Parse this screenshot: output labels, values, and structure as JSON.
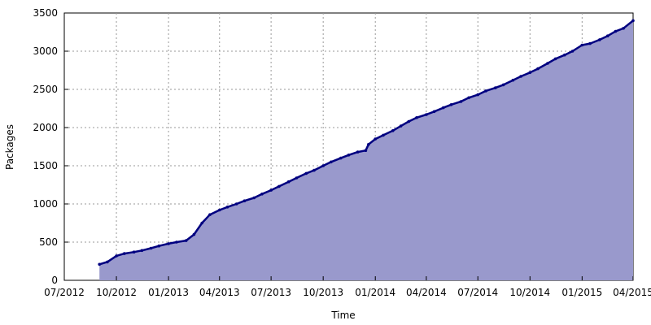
{
  "chart_data": {
    "type": "area",
    "title": "",
    "xlabel": "Time",
    "ylabel": "Packages",
    "x_ticks": [
      {
        "date": "2012-07-01",
        "label": "07/2012"
      },
      {
        "date": "2012-10-01",
        "label": "10/2012"
      },
      {
        "date": "2013-01-01",
        "label": "01/2013"
      },
      {
        "date": "2013-04-01",
        "label": "04/2013"
      },
      {
        "date": "2013-07-01",
        "label": "07/2013"
      },
      {
        "date": "2013-10-01",
        "label": "10/2013"
      },
      {
        "date": "2014-01-01",
        "label": "01/2014"
      },
      {
        "date": "2014-04-01",
        "label": "04/2014"
      },
      {
        "date": "2014-07-01",
        "label": "07/2014"
      },
      {
        "date": "2014-10-01",
        "label": "10/2014"
      },
      {
        "date": "2015-01-01",
        "label": "01/2015"
      },
      {
        "date": "2015-04-01",
        "label": "04/2015"
      }
    ],
    "xlim": [
      "2012-07-01",
      "2015-04-01"
    ],
    "y_ticks": [
      0,
      500,
      1000,
      1500,
      2000,
      2500,
      3000,
      3500
    ],
    "ylim": [
      0,
      3500
    ],
    "grid": true,
    "colors": {
      "fill": "#9999cc",
      "line": "#000080"
    },
    "series": [
      {
        "x": [
          "2012-09-01",
          "2012-09-15",
          "2012-10-01",
          "2012-10-15",
          "2012-11-01",
          "2012-11-15",
          "2012-12-01",
          "2012-12-15",
          "2013-01-01",
          "2013-01-15",
          "2013-02-01",
          "2013-02-15",
          "2013-03-01",
          "2013-03-15",
          "2013-04-01",
          "2013-04-15",
          "2013-05-01",
          "2013-05-15",
          "2013-06-01",
          "2013-06-15",
          "2013-07-01",
          "2013-07-15",
          "2013-08-01",
          "2013-08-15",
          "2013-09-01",
          "2013-09-15",
          "2013-10-01",
          "2013-10-15",
          "2013-11-01",
          "2013-11-15",
          "2013-12-01",
          "2013-12-15",
          "2013-12-20",
          "2014-01-01",
          "2014-01-15",
          "2014-02-01",
          "2014-02-15",
          "2014-03-01",
          "2014-03-15",
          "2014-04-01",
          "2014-04-15",
          "2014-05-01",
          "2014-05-15",
          "2014-06-01",
          "2014-06-15",
          "2014-07-01",
          "2014-07-15",
          "2014-08-01",
          "2014-08-15",
          "2014-09-01",
          "2014-09-15",
          "2014-10-01",
          "2014-10-15",
          "2014-11-01",
          "2014-11-15",
          "2014-12-01",
          "2014-12-15",
          "2015-01-01",
          "2015-01-15",
          "2015-02-01",
          "2015-02-15",
          "2015-03-01",
          "2015-03-15",
          "2015-04-01"
        ],
        "y": [
          210,
          240,
          320,
          350,
          370,
          390,
          420,
          450,
          480,
          500,
          520,
          600,
          750,
          860,
          920,
          960,
          1000,
          1040,
          1080,
          1130,
          1180,
          1230,
          1290,
          1340,
          1400,
          1440,
          1500,
          1550,
          1600,
          1640,
          1680,
          1700,
          1780,
          1850,
          1900,
          1960,
          2020,
          2080,
          2130,
          2170,
          2210,
          2260,
          2300,
          2340,
          2390,
          2430,
          2480,
          2520,
          2560,
          2620,
          2670,
          2720,
          2770,
          2840,
          2900,
          2950,
          3000,
          3080,
          3100,
          3150,
          3200,
          3260,
          3300,
          3400
        ]
      }
    ]
  }
}
